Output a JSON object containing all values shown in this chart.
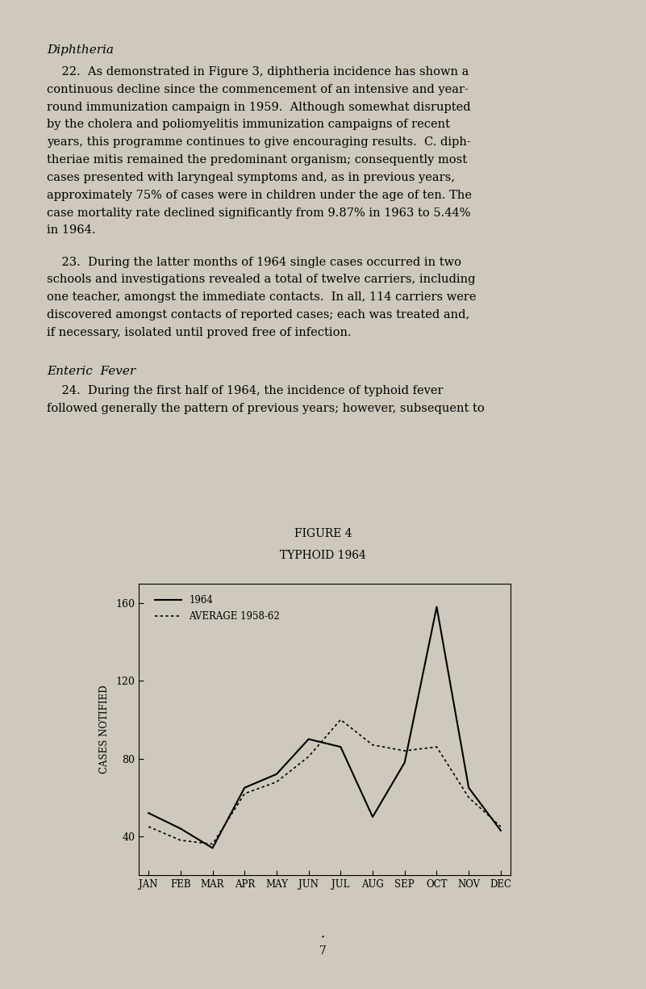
{
  "title": "FIGURE 4",
  "subtitle": "TYPHOID 1964",
  "months": [
    "JAN",
    "FEB",
    "MAR",
    "APR",
    "MAY",
    "JUN",
    "JUL",
    "AUG",
    "SEP",
    "OCT",
    "NOV",
    "DEC"
  ],
  "data_1964": [
    52,
    44,
    34,
    65,
    72,
    90,
    86,
    50,
    78,
    158,
    65,
    43
  ],
  "data_avg": [
    45,
    38,
    36,
    62,
    68,
    81,
    100,
    87,
    84,
    86,
    60,
    45
  ],
  "ylabel": "CASES NOTIFIED",
  "yticks": [
    40,
    80,
    120,
    160
  ],
  "ylim": [
    20,
    170
  ],
  "legend_1964": "1964",
  "legend_avg": "AVERAGE 1958-62",
  "bg_color": "#cec9bc",
  "plot_bg": "#cec9bc",
  "text_color": "#000000",
  "page_number": "7",
  "para1_heading": "Diphtheria",
  "para1": "    22.  As demonstrated in Figure 3, diphtheria incidence has shown a continuous decline since the commencement of an intensive and year-round immunization campaign in 1959.  Although somewhat disrupted by the cholera and poliomyelitis immunization campaigns of recent years, this programme continues to give encouraging results.  C. diph-theriae mitis remained the predominant organism; consequently most cases presented with laryngeal symptoms and, as in previous years, approximately 75% of cases were in children under the age of ten. The case mortality rate declined significantly from 9.87% in 1963 to 5.44% in 1964.",
  "para2": "    23.  During the latter months of 1964 single cases occurred in two schools and investigations revealed a total of twelve carriers, including one teacher, amongst the immediate contacts.  In all, 114 carriers were discovered amongst contacts of reported cases; each was treated and, if necessary, isolated until proved free of infection.",
  "para3_heading": "Enteric  Fever",
  "para3": "    24.  During the first half of 1964, the incidence of typhoid fever followed generally the pattern of previous years; however, subsequent to"
}
